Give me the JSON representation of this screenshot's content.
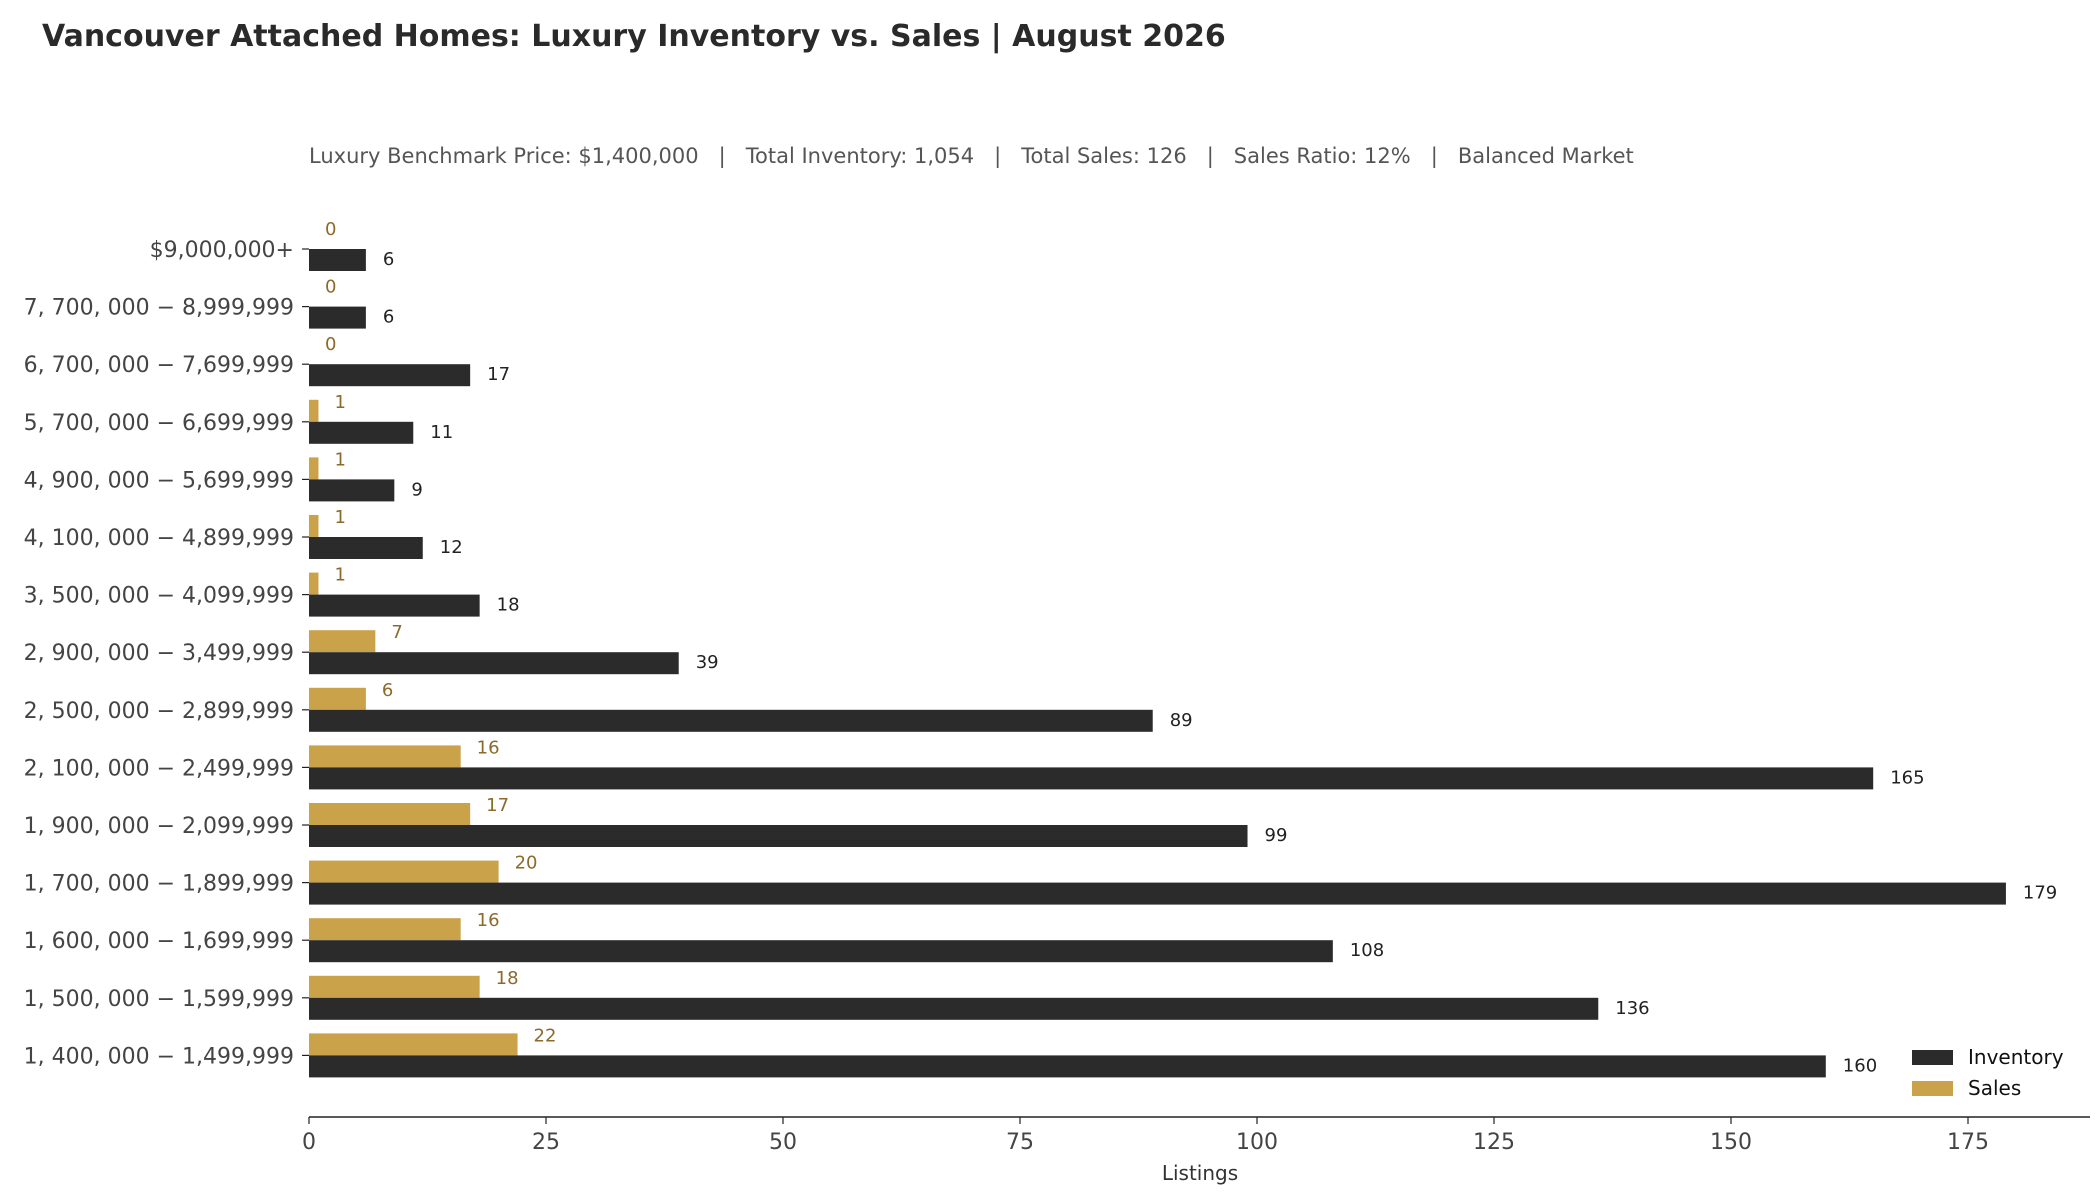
{
  "colors": {
    "inventory": "#2b2b2b",
    "sales": "#c9a24a",
    "sales_label": "#8c6a2a",
    "axis": "#222222"
  },
  "chart_data": {
    "type": "bar",
    "orientation": "horizontal",
    "title": "Vancouver Attached Homes: Luxury Inventory vs. Sales | August 2026",
    "subtitle": "Luxury Benchmark Price: $1,400,000   |   Total Inventory: 1,054   |   Total Sales: 126   |   Sales Ratio: 12%   |   Balanced Market",
    "xlabel": "Listings",
    "ylabel": "",
    "xlim": [
      0,
      188
    ],
    "xticks": [
      0,
      25,
      50,
      75,
      100,
      125,
      150,
      175
    ],
    "legend_position": "bottom-right",
    "categories": [
      "$9,000,000+",
      "7, 700, 000 − 8,999,999",
      "6, 700, 000 − 7,699,999",
      "5, 700, 000 − 6,699,999",
      "4, 900, 000 − 5,699,999",
      "4, 100, 000 − 4,899,999",
      "3, 500, 000 − 4,099,999",
      "2, 900, 000 − 3,499,999",
      "2, 500, 000 − 2,899,999",
      "2, 100, 000 − 2,499,999",
      "1, 900, 000 − 2,099,999",
      "1, 700, 000 − 1,899,999",
      "1, 600, 000 − 1,699,999",
      "1, 500, 000 − 1,599,999",
      "1, 400, 000 − 1,499,999"
    ],
    "series": [
      {
        "name": "Inventory",
        "values": [
          6,
          6,
          17,
          11,
          9,
          12,
          18,
          39,
          89,
          165,
          99,
          179,
          108,
          136,
          160
        ]
      },
      {
        "name": "Sales",
        "values": [
          0,
          0,
          0,
          1,
          1,
          1,
          1,
          7,
          6,
          16,
          17,
          20,
          16,
          18,
          22
        ]
      }
    ]
  }
}
